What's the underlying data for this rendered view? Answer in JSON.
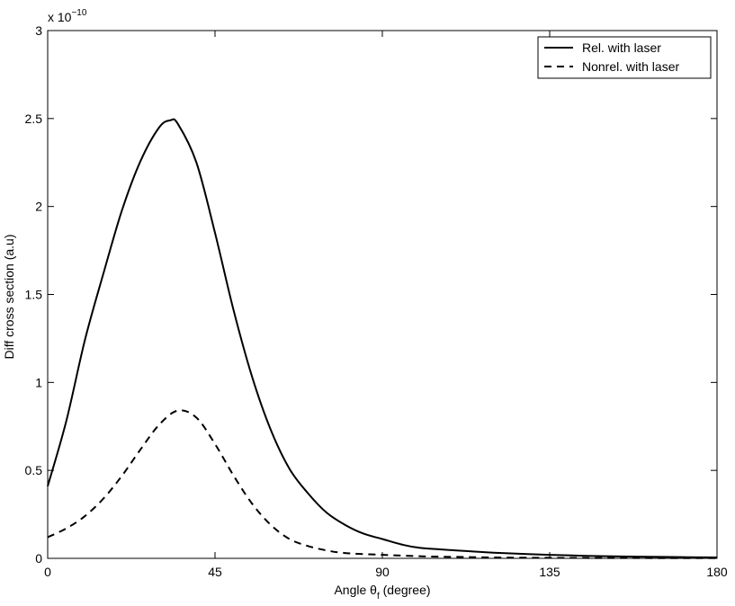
{
  "chart_data": {
    "type": "line",
    "title": "",
    "xlabel_prefix": "Angle ",
    "xlabel_symbol": "θ",
    "xlabel_subscript": "f",
    "xlabel_suffix": " (degree)",
    "ylabel": "Diff cross section (a.u)",
    "y_multiplier_base": "x 10",
    "y_multiplier_exponent": "−10",
    "xlim": [
      0,
      180
    ],
    "ylim": [
      0,
      3
    ],
    "x_ticks": [
      0,
      45,
      90,
      135,
      180
    ],
    "y_ticks": [
      0,
      0.5,
      1,
      1.5,
      2,
      2.5,
      3
    ],
    "x_tick_labels": [
      "0",
      "45",
      "90",
      "135",
      "180"
    ],
    "y_tick_labels": [
      "0",
      "0.5",
      "1",
      "1.5",
      "2",
      "2.5",
      "3"
    ],
    "grid": false,
    "legend_position": "top-right",
    "series": [
      {
        "name": "Rel. with laser",
        "style": "solid",
        "color": "#000000",
        "x": [
          0,
          5,
          10,
          15,
          20,
          25,
          30,
          33,
          35,
          40,
          45,
          50,
          55,
          60,
          65,
          70,
          75,
          80,
          85,
          90,
          95,
          100,
          110,
          120,
          135,
          150,
          165,
          180
        ],
        "y": [
          0.41,
          0.78,
          1.24,
          1.62,
          1.98,
          2.26,
          2.45,
          2.49,
          2.47,
          2.25,
          1.85,
          1.41,
          1.03,
          0.73,
          0.51,
          0.37,
          0.26,
          0.19,
          0.14,
          0.11,
          0.08,
          0.06,
          0.045,
          0.032,
          0.02,
          0.012,
          0.008,
          0.005
        ]
      },
      {
        "name": "Nonrel. with laser",
        "style": "dashed",
        "color": "#000000",
        "x": [
          0,
          5,
          10,
          15,
          20,
          25,
          30,
          35,
          40,
          45,
          50,
          55,
          60,
          65,
          70,
          75,
          80,
          90,
          100,
          110,
          120,
          135,
          150,
          180
        ],
        "y": [
          0.12,
          0.17,
          0.24,
          0.34,
          0.47,
          0.62,
          0.76,
          0.84,
          0.8,
          0.65,
          0.47,
          0.31,
          0.19,
          0.11,
          0.07,
          0.045,
          0.03,
          0.02,
          0.012,
          0.008,
          0.005,
          0.003,
          0.002,
          0.001
        ]
      }
    ]
  }
}
